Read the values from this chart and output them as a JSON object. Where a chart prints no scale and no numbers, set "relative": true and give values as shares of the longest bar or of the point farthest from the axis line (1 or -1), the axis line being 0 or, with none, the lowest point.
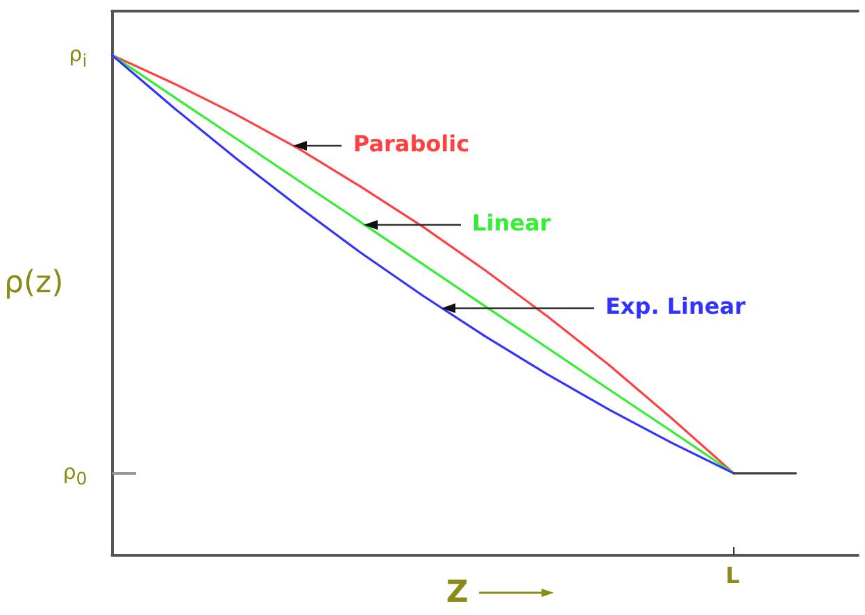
{
  "chart_data": {
    "type": "line",
    "relative": true,
    "xlabel": "Z",
    "ylabel": "ρ(z)",
    "categories": [
      null,
      null,
      null,
      null,
      null,
      null,
      null,
      null,
      null,
      null,
      null,
      null,
      null
    ],
    "series": [
      {
        "color": "#ff4040",
        "values": [
          1,
          0.943,
          0.881,
          0.813,
          0.737,
          0.657,
          0.57,
          0.478,
          0.38,
          0.274,
          0.164,
          null,
          null
        ]
      },
      {
        "color": "#33ee33",
        "values": [
          1,
          0.916,
          0.833,
          0.749,
          0.666,
          0.582,
          0.498,
          0.415,
          0.331,
          0.248,
          0.164,
          null,
          null
        ]
      },
      {
        "color": "#3333ff",
        "values": [
          1,
          0.894,
          0.793,
          0.697,
          0.605,
          0.519,
          0.438,
          0.362,
          0.291,
          0.225,
          0.164,
          null,
          null
        ]
      },
      {
        "color": "#404040",
        "values": [
          null,
          null,
          null,
          null,
          null,
          null,
          null,
          null,
          null,
          null,
          0.164,
          0.164,
          null
        ]
      }
    ],
    "annotations": [
      "Parabolic",
      "Linear",
      "Exp. Linear",
      "ρ$_{i}$",
      "ρ$_{0}$",
      "L"
    ],
    "grid": false,
    "marker": "none",
    "line_style": "solid"
  }
}
